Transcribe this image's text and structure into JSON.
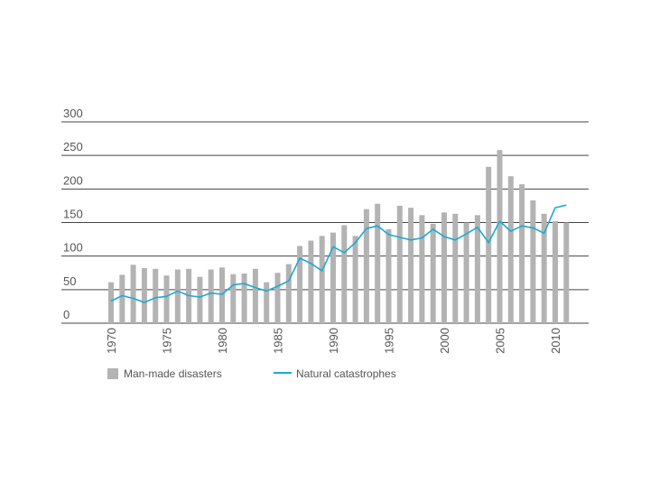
{
  "chart_data": {
    "type": "bar",
    "title": "",
    "xlabel": "",
    "ylabel": "",
    "ylim": [
      0,
      300
    ],
    "yticks": [
      0,
      50,
      100,
      150,
      200,
      250,
      300
    ],
    "x": [
      1970,
      1971,
      1972,
      1973,
      1974,
      1975,
      1976,
      1977,
      1978,
      1979,
      1980,
      1981,
      1982,
      1983,
      1984,
      1985,
      1986,
      1987,
      1988,
      1989,
      1990,
      1991,
      1992,
      1993,
      1994,
      1995,
      1996,
      1997,
      1998,
      1999,
      2000,
      2001,
      2002,
      2003,
      2004,
      2005,
      2006,
      2007,
      2008,
      2009,
      2010,
      2011
    ],
    "xtick_labels": [
      "1970",
      "1975",
      "1980",
      "1985",
      "1990",
      "1995",
      "2000",
      "2005",
      "2010"
    ],
    "series": [
      {
        "name": "Man-made disasters",
        "type": "bar",
        "color": "#b3b3b3",
        "values": [
          61,
          72,
          87,
          82,
          81,
          71,
          80,
          81,
          69,
          80,
          83,
          73,
          74,
          81,
          61,
          75,
          88,
          115,
          123,
          130,
          135,
          146,
          130,
          170,
          178,
          140,
          175,
          172,
          161,
          148,
          165,
          163,
          150,
          161,
          233,
          258,
          219,
          207,
          183,
          163,
          152,
          150
        ]
      },
      {
        "name": "Natural catastrophes",
        "type": "line",
        "color": "#1da9d4",
        "values": [
          33,
          41,
          37,
          31,
          38,
          40,
          48,
          41,
          39,
          45,
          43,
          57,
          59,
          53,
          48,
          55,
          63,
          97,
          89,
          78,
          114,
          105,
          120,
          141,
          145,
          132,
          128,
          124,
          127,
          140,
          129,
          124,
          133,
          143,
          120,
          152,
          137,
          145,
          142,
          134,
          172,
          176
        ]
      }
    ],
    "legend_position": "bottom-left"
  }
}
